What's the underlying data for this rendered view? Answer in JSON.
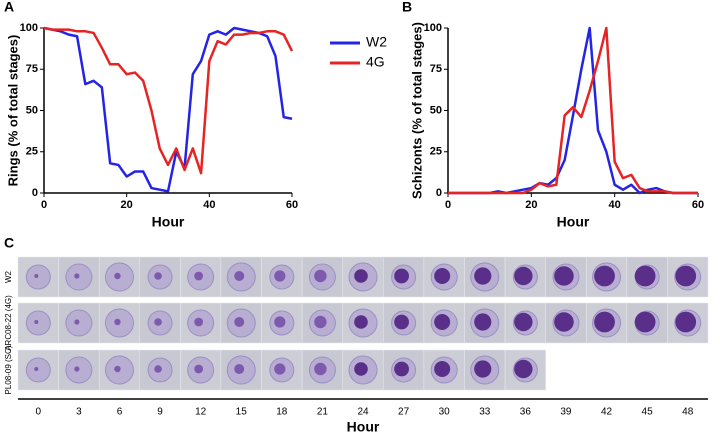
{
  "chart_data": [
    {
      "type": "line",
      "label": "A",
      "xlabel": "Hour",
      "ylabel": "Rings (% of total stages)",
      "x": [
        0,
        2,
        4,
        6,
        8,
        10,
        12,
        14,
        16,
        18,
        20,
        22,
        24,
        26,
        28,
        30,
        32,
        34,
        36,
        38,
        40,
        42,
        44,
        46,
        48,
        50,
        52,
        54,
        56,
        58,
        60
      ],
      "series": [
        {
          "name": "W2",
          "color": "#2424e6",
          "values": [
            100,
            99,
            98,
            96,
            95,
            66,
            68,
            64,
            18,
            17,
            10,
            13,
            13,
            3,
            2,
            1,
            25,
            15,
            72,
            80,
            96,
            98,
            96,
            100,
            99,
            98,
            97,
            95,
            83,
            46,
            45
          ]
        },
        {
          "name": "4G",
          "color": "#e62424",
          "values": [
            100,
            99,
            99,
            99,
            98,
            98,
            97,
            88,
            78,
            78,
            72,
            73,
            68,
            50,
            27,
            17,
            27,
            14,
            27,
            12,
            80,
            92,
            90,
            96,
            96,
            97,
            97,
            98,
            98,
            96,
            86
          ]
        }
      ],
      "xlim": [
        0,
        60
      ],
      "xticks": [
        0,
        20,
        40,
        60
      ],
      "ylim": [
        0,
        100
      ],
      "yticks": [
        0,
        25,
        50,
        75,
        100
      ],
      "legend": "right"
    },
    {
      "type": "line",
      "label": "B",
      "xlabel": "Hour",
      "ylabel": "Schizonts (% of total stages)",
      "x": [
        0,
        2,
        4,
        6,
        8,
        10,
        12,
        14,
        16,
        18,
        20,
        22,
        24,
        26,
        28,
        30,
        32,
        34,
        36,
        38,
        40,
        42,
        44,
        46,
        48,
        50,
        52,
        54,
        56,
        58,
        60
      ],
      "series": [
        {
          "color": "#2424e6",
          "values": [
            0,
            0,
            0,
            0,
            0,
            0,
            1,
            0,
            1,
            2,
            3,
            6,
            5,
            9,
            20,
            47,
            75,
            100,
            38,
            25,
            5,
            2,
            5,
            0,
            2,
            3,
            1,
            0,
            0,
            0,
            0
          ]
        },
        {
          "color": "#e62424",
          "values": [
            0,
            0,
            0,
            0,
            0,
            0,
            0,
            0,
            0,
            0,
            2,
            6,
            4,
            5,
            47,
            52,
            46,
            62,
            80,
            100,
            19,
            9,
            11,
            3,
            1,
            1,
            1,
            0,
            0,
            0,
            0
          ]
        }
      ],
      "xlim": [
        0,
        60
      ],
      "xticks": [
        0,
        20,
        40,
        60
      ],
      "ylim": [
        0,
        100
      ],
      "yticks": [
        0,
        25,
        50,
        75,
        100
      ]
    }
  ],
  "panel_c": {
    "label": "C",
    "rows": [
      "W2",
      "ARC08-22 (4G)",
      "PL08-09 (SC)"
    ],
    "hours": [
      "0",
      "3",
      "6",
      "9",
      "12",
      "15",
      "18",
      "21",
      "24",
      "27",
      "30",
      "33",
      "36",
      "39",
      "42",
      "45",
      "48"
    ],
    "xlabel": "Hour"
  }
}
